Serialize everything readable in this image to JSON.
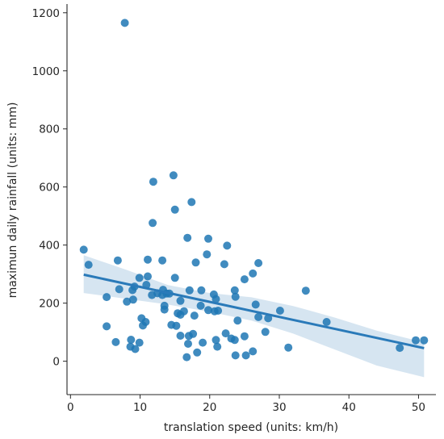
{
  "chart_data": {
    "type": "scatter",
    "xlabel": "translation speed (units: km/h)",
    "ylabel": "maximun daily rainfall (units: mm)",
    "xlim": [
      -0.5,
      52.5
    ],
    "ylim": [
      -115,
      1230
    ],
    "xticks": [
      0,
      10,
      20,
      30,
      40,
      50
    ],
    "yticks": [
      0,
      200,
      400,
      600,
      800,
      1000,
      1200
    ],
    "grid": false,
    "colors": {
      "points": "#1f77b4",
      "line": "#2a7ab9",
      "band": "#cfe0ef"
    },
    "regression": {
      "x": [
        1.9,
        50.8
      ],
      "y": [
        298,
        45
      ],
      "ci_upper": [
        365,
        315,
        262,
        235,
        220,
        190,
        150,
        105,
        65
      ],
      "ci_lower": [
        235,
        215,
        195,
        170,
        140,
        95,
        40,
        -15,
        -55
      ],
      "ci_x": [
        1.9,
        8,
        14,
        20,
        26,
        32,
        38,
        44,
        50.8
      ]
    },
    "points": [
      [
        7.8,
        1165
      ],
      [
        14.8,
        640
      ],
      [
        11.9,
        618
      ],
      [
        17.4,
        548
      ],
      [
        15.0,
        522
      ],
      [
        11.8,
        476
      ],
      [
        16.8,
        425
      ],
      [
        19.8,
        422
      ],
      [
        22.5,
        398
      ],
      [
        19.6,
        368
      ],
      [
        1.9,
        384
      ],
      [
        2.6,
        332
      ],
      [
        6.8,
        347
      ],
      [
        11.1,
        350
      ],
      [
        13.2,
        347
      ],
      [
        18.0,
        340
      ],
      [
        22.1,
        334
      ],
      [
        27.0,
        338
      ],
      [
        26.2,
        302
      ],
      [
        25.0,
        282
      ],
      [
        11.1,
        292
      ],
      [
        9.9,
        287
      ],
      [
        15.0,
        287
      ],
      [
        33.8,
        243
      ],
      [
        23.6,
        244
      ],
      [
        7.0,
        248
      ],
      [
        8.9,
        245
      ],
      [
        9.2,
        257
      ],
      [
        10.9,
        263
      ],
      [
        13.3,
        246
      ],
      [
        13.8,
        233
      ],
      [
        12.5,
        234
      ],
      [
        13.2,
        228
      ],
      [
        11.7,
        228
      ],
      [
        14.2,
        233
      ],
      [
        17.1,
        244
      ],
      [
        18.8,
        244
      ],
      [
        20.6,
        230
      ],
      [
        20.9,
        214
      ],
      [
        23.7,
        222
      ],
      [
        8.1,
        205
      ],
      [
        5.2,
        221
      ],
      [
        9.0,
        212
      ],
      [
        15.8,
        208
      ],
      [
        26.6,
        195
      ],
      [
        13.5,
        191
      ],
      [
        13.5,
        178
      ],
      [
        18.7,
        191
      ],
      [
        19.8,
        176
      ],
      [
        20.7,
        172
      ],
      [
        21.2,
        174
      ],
      [
        16.3,
        172
      ],
      [
        15.4,
        165
      ],
      [
        15.8,
        160
      ],
      [
        17.8,
        157
      ],
      [
        27.0,
        152
      ],
      [
        28.4,
        148
      ],
      [
        30.1,
        174
      ],
      [
        36.8,
        135
      ],
      [
        24.0,
        140
      ],
      [
        10.2,
        148
      ],
      [
        10.8,
        135
      ],
      [
        10.4,
        123
      ],
      [
        14.5,
        125
      ],
      [
        15.2,
        122
      ],
      [
        5.2,
        120
      ],
      [
        15.8,
        88
      ],
      [
        17.0,
        87
      ],
      [
        17.6,
        94
      ],
      [
        19.0,
        64
      ],
      [
        20.9,
        73
      ],
      [
        21.1,
        50
      ],
      [
        22.3,
        96
      ],
      [
        23.1,
        78
      ],
      [
        23.6,
        73
      ],
      [
        25.0,
        86
      ],
      [
        28.0,
        101
      ],
      [
        6.5,
        66
      ],
      [
        8.7,
        74
      ],
      [
        9.9,
        64
      ],
      [
        8.6,
        50
      ],
      [
        9.3,
        42
      ],
      [
        16.9,
        60
      ],
      [
        18.2,
        30
      ],
      [
        16.7,
        14
      ],
      [
        23.7,
        20
      ],
      [
        25.2,
        20
      ],
      [
        26.2,
        34
      ],
      [
        31.3,
        47
      ],
      [
        47.3,
        46
      ],
      [
        49.6,
        72
      ],
      [
        50.8,
        72
      ]
    ]
  }
}
